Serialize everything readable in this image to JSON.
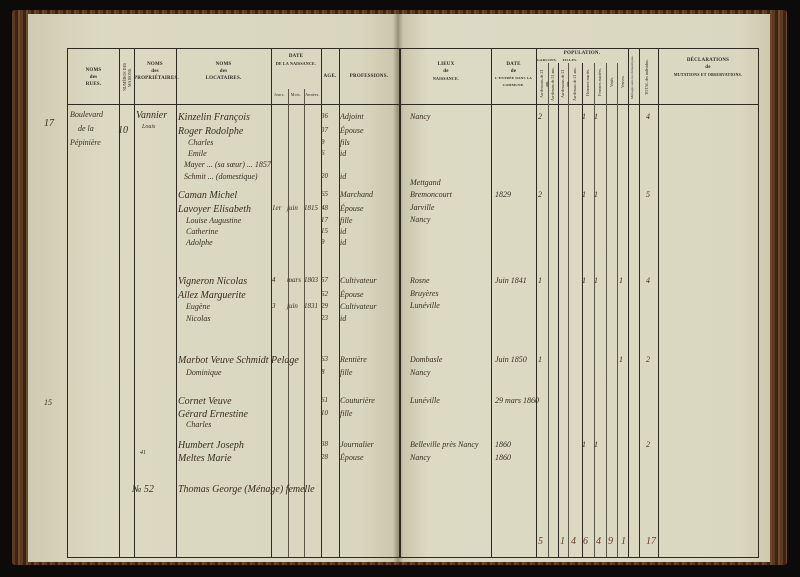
{
  "headers_left": {
    "rues": [
      "NOMS",
      "des",
      "RUES."
    ],
    "numeros": "NUMÉROS DES MAISONS.",
    "proprietaires": [
      "NOMS",
      "des",
      "PROPRIÉTAIRES."
    ],
    "locataires": [
      "NOMS",
      "des",
      "LOCATAIRES."
    ],
    "date_naissance": [
      "DATE",
      "DE LA NAISSANCE."
    ],
    "jours": "Jours.",
    "mois": "Mois.",
    "annees": "Années.",
    "age": "AGE.",
    "professions": "PROFESSIONS."
  },
  "headers_right": {
    "lieux": [
      "LIEUX",
      "de",
      "NAISSANCE."
    ],
    "date_entree": [
      "DATE",
      "de",
      "L'ENTRÉE DANS LA COMMUNE."
    ],
    "population": "POPULATION.",
    "garcons": "GARÇONS.",
    "filles": "FILLES.",
    "g_moins": "Au-dessous de 21 ans.",
    "g_plus": "Au-dessus de 21 ans.",
    "f_moins": "Au-dessous de 21 ans.",
    "f_plus": "Au-dessus de 21 ans.",
    "hommes_maries": "Hommes mariés.",
    "femmes_mariees": "Femmes mariées.",
    "veufs": "Veufs.",
    "veuves": "Veuves.",
    "menages": "Ménages sans les domestiques.",
    "total": "TOTAL des individus.",
    "declarations": [
      "DÉCLARATIONS",
      "de",
      "MUTATIONS ET OBSERVATIONS."
    ]
  },
  "margin_notes": [
    "17",
    "15",
    "41",
    "№ 52"
  ],
  "street": [
    "Boulevard",
    "de la",
    "Pépinière"
  ],
  "house_number": "10",
  "proprietor": [
    "Vannier",
    "Louis"
  ],
  "left_rows": [
    {
      "name": "Kinzelin François",
      "j": "",
      "m": "",
      "a": "",
      "age": "36",
      "prof": "Adjoint"
    },
    {
      "name": "Roger Rodolphe",
      "j": "",
      "m": "",
      "a": "",
      "age": "37",
      "prof": "Épouse"
    },
    {
      "name": "Charles",
      "j": "",
      "m": "",
      "a": "",
      "age": "9",
      "prof": "fils"
    },
    {
      "name": "Emile",
      "j": "",
      "m": "",
      "a": "",
      "age": "6",
      "prof": "id"
    },
    {
      "name": "Mayer ... (sa sœur) ... 1857",
      "j": "",
      "m": "",
      "a": "",
      "age": "",
      "prof": ""
    },
    {
      "name": "Schmit ... (domestique)",
      "j": "",
      "m": "",
      "a": "",
      "age": "20",
      "prof": "id"
    },
    {
      "name": "Caman Michel",
      "j": "",
      "m": "",
      "a": "",
      "age": "65",
      "prof": "Marchand"
    },
    {
      "name": "Lavoyer Elisabeth",
      "j": "1er",
      "m": "juin",
      "a": "1815",
      "age": "48",
      "prof": "Épouse"
    },
    {
      "name": "Louise Augustine",
      "j": "",
      "m": "",
      "a": "",
      "age": "17",
      "prof": "fille"
    },
    {
      "name": "Catherine",
      "j": "",
      "m": "",
      "a": "",
      "age": "15",
      "prof": "id"
    },
    {
      "name": "Adolphe",
      "j": "",
      "m": "",
      "a": "",
      "age": "9",
      "prof": "id"
    },
    {
      "name": "Vigneron Nicolas",
      "j": "4",
      "m": "mars",
      "a": "1803",
      "age": "57",
      "prof": "Cultivateur"
    },
    {
      "name": "Allez Marguerite",
      "j": "",
      "m": "",
      "a": "",
      "age": "52",
      "prof": "Épouse"
    },
    {
      "name": "Eugène",
      "j": "3",
      "m": "juin",
      "a": "1831",
      "age": "29",
      "prof": "Cultivateur"
    },
    {
      "name": "Nicolas",
      "j": "",
      "m": "",
      "a": "",
      "age": "23",
      "prof": "id"
    },
    {
      "name": "Marbot Veuve Schmidt Pelage",
      "j": "",
      "m": "",
      "a": "",
      "age": "63",
      "prof": "Rentière"
    },
    {
      "name": "Dominique",
      "j": "",
      "m": "",
      "a": "",
      "age": "8",
      "prof": "fille"
    },
    {
      "name": "Cornet Veuve",
      "j": "",
      "m": "",
      "a": "",
      "age": "61",
      "prof": "Couturière"
    },
    {
      "name": "Gérard Ernestine",
      "j": "",
      "m": "",
      "a": "",
      "age": "10",
      "prof": "fille"
    },
    {
      "name": "Charles",
      "j": "",
      "m": "",
      "a": "",
      "age": "",
      "prof": ""
    },
    {
      "name": "Humbert Joseph",
      "j": "",
      "m": "",
      "a": "",
      "age": "38",
      "prof": "Journalier"
    },
    {
      "name": "Meltes Marie",
      "j": "",
      "m": "",
      "a": "",
      "age": "28",
      "prof": "Épouse"
    },
    {
      "name": "Thomas George (Ménage) femelle",
      "j": "",
      "m": "",
      "a": "",
      "age": "",
      "prof": ""
    }
  ],
  "right_rows": [
    {
      "lieu": "Nancy",
      "date": "",
      "gm": "2",
      "hm": "1",
      "fm": "1",
      "vf": "",
      "total": "4"
    },
    {
      "lieu": "Mettgand",
      "date": "",
      "gm": "",
      "hm": "",
      "fm": "",
      "vf": "",
      "total": ""
    },
    {
      "lieu": "Bremoncourt",
      "date": "1829",
      "gm": "2",
      "hm": "1",
      "fm": "1",
      "vf": "",
      "total": "5"
    },
    {
      "lieu": "Jarville",
      "date": "",
      "gm": "",
      "hm": "",
      "fm": "",
      "vf": "",
      "total": ""
    },
    {
      "lieu": "Nancy",
      "date": "",
      "gm": "",
      "hm": "",
      "fm": "",
      "vf": "",
      "total": ""
    },
    {
      "lieu": "Rosne",
      "date": "Juin 1841",
      "gm": "1",
      "hm": "1",
      "fm": "1",
      "vf": "1",
      "total": "4"
    },
    {
      "lieu": "Bruyères",
      "date": "",
      "gm": "",
      "hm": "",
      "fm": "",
      "vf": "",
      "total": ""
    },
    {
      "lieu": "Lunéville",
      "date": "",
      "gm": "",
      "hm": "",
      "fm": "",
      "vf": "",
      "total": ""
    },
    {
      "lieu": "Dombasle",
      "date": "Juin 1850",
      "gm": "1",
      "hm": "",
      "fm": "",
      "vf": "1",
      "total": "2"
    },
    {
      "lieu": "Nancy",
      "date": "",
      "gm": "",
      "hm": "",
      "fm": "",
      "vf": "",
      "total": ""
    },
    {
      "lieu": "Lunéville",
      "date": "29 mars 1860",
      "gm": "",
      "hm": "",
      "fm": "",
      "vf": "",
      "total": ""
    },
    {
      "lieu": "Belleville près Nancy",
      "date": "1860",
      "gm": "",
      "hm": "1",
      "fm": "1",
      "vf": "",
      "total": "2"
    },
    {
      "lieu": "Nancy",
      "date": "1860",
      "gm": "",
      "hm": "",
      "fm": "",
      "vf": "",
      "total": ""
    }
  ],
  "totals": [
    "5",
    "1",
    "4",
    "6",
    "4",
    "9",
    "1",
    "17"
  ]
}
